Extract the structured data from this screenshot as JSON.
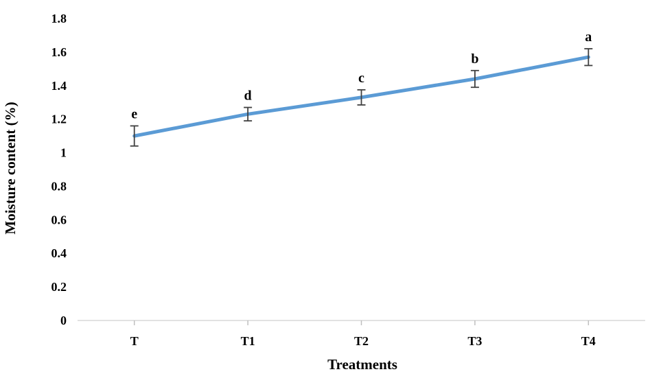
{
  "chart_data": {
    "type": "line",
    "title": "",
    "xlabel": "Treatments",
    "ylabel": "Moisture content (%)",
    "categories": [
      "T",
      "T1",
      "T2",
      "T3",
      "T4"
    ],
    "series": [
      {
        "name": "",
        "values": [
          1.1,
          1.23,
          1.33,
          1.44,
          1.57
        ],
        "error": [
          0.06,
          0.04,
          0.045,
          0.05,
          0.05
        ],
        "labels": [
          "e",
          "d",
          "c",
          "b",
          "a"
        ],
        "color": "#5b9bd5"
      }
    ],
    "ylim": [
      0,
      1.8
    ],
    "yticks": [
      "0",
      "0.2",
      "0.4",
      "0.6",
      "0.8",
      "1",
      "1.2",
      "1.4",
      "1.6",
      "1.8"
    ],
    "grid": false,
    "legend": "none"
  }
}
